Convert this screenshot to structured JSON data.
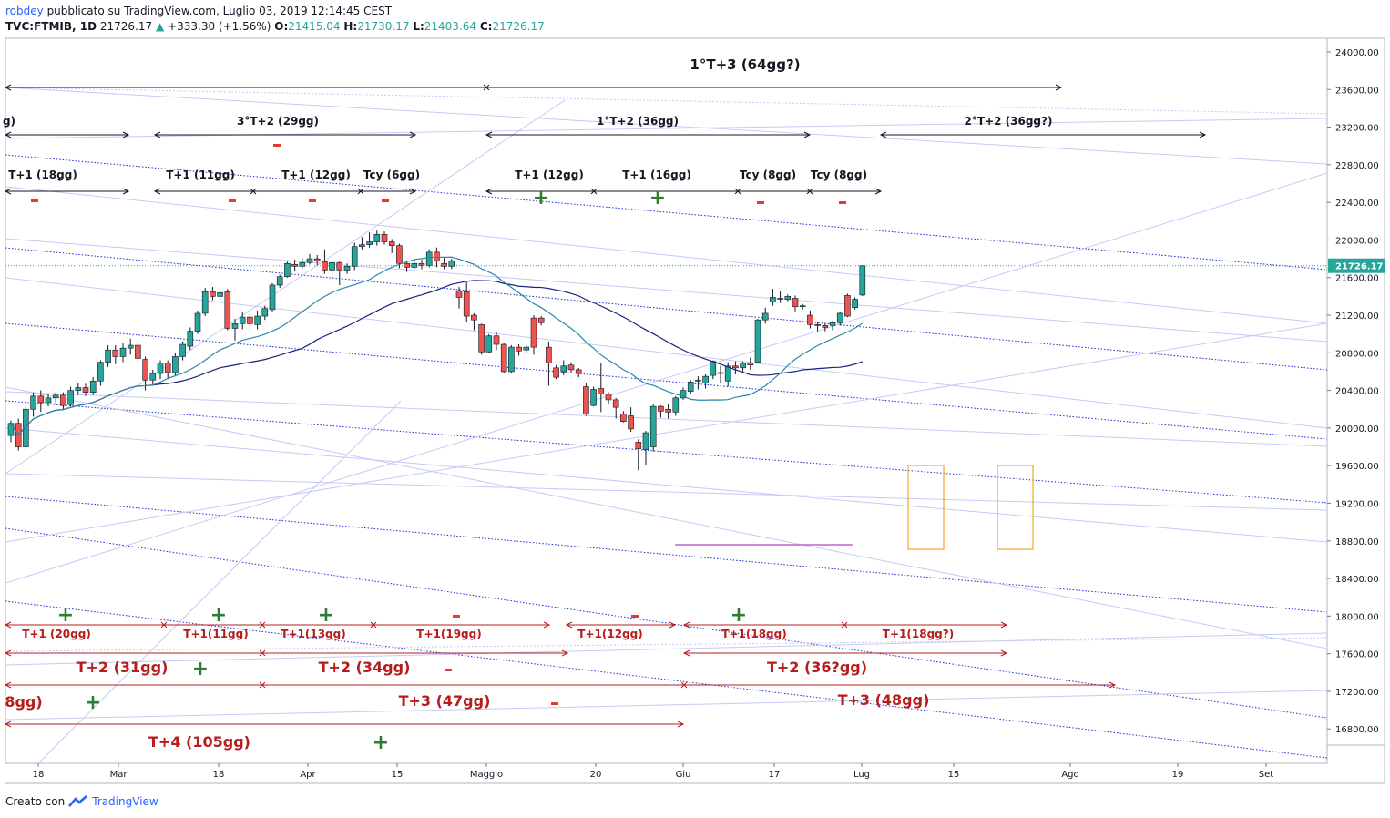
{
  "header": {
    "user": "robdey",
    "published": "pubblicato su TradingView.com, Luglio 03, 2019 12:14:45 CEST",
    "symbol": "TVC:FTMIB, 1D",
    "last": "21726.17",
    "change": "+333.30 (+1.56%)",
    "o_label": "O:",
    "o": "21415.04",
    "h_label": "H:",
    "h": "21730.17",
    "l_label": "L:",
    "l": "21403.64",
    "c_label": "C:",
    "c": "21726.17"
  },
  "footer": {
    "created": "Creato con",
    "brand": "TradingView"
  },
  "colors": {
    "up": "#26a69a",
    "down": "#ef5350",
    "annot_black": "#131722",
    "annot_red": "#b71c1c",
    "plus": "#2e7d32",
    "minus": "#e53935",
    "price_line": "#26a69a",
    "orange": "#f5a623",
    "purple": "#ba68c8"
  },
  "chart_data": {
    "type": "candlestick",
    "ylim": [
      16400,
      24200
    ],
    "y_ticks": [
      "24000.00",
      "23600.00",
      "23200.00",
      "22800.00",
      "22400.00",
      "22000.00",
      "21600.00",
      "21200.00",
      "20800.00",
      "20400.00",
      "20000.00",
      "19600.00",
      "19200.00",
      "18800.00",
      "18400.00",
      "18000.00",
      "17600.00",
      "17200.00",
      "16800.00"
    ],
    "x_ticks": [
      "18",
      "Mar",
      "18",
      "Apr",
      "15",
      "Maggio",
      "20",
      "Giu",
      "17",
      "Lug",
      "15",
      "Ago",
      "19",
      "Set"
    ],
    "last_price_label": "21726.17",
    "candles": [
      [
        19920,
        20050,
        19850,
        20080
      ],
      [
        20050,
        19800,
        19760,
        20100
      ],
      [
        19800,
        20200,
        19780,
        20250
      ],
      [
        20200,
        20340,
        20120,
        20380
      ],
      [
        20340,
        20270,
        20170,
        20400
      ],
      [
        20270,
        20320,
        20230,
        20360
      ],
      [
        20320,
        20350,
        20260,
        20380
      ],
      [
        20350,
        20240,
        20200,
        20380
      ],
      [
        20250,
        20400,
        20230,
        20440
      ],
      [
        20400,
        20430,
        20350,
        20480
      ],
      [
        20430,
        20380,
        20340,
        20470
      ],
      [
        20380,
        20500,
        20350,
        20540
      ],
      [
        20500,
        20700,
        20450,
        20720
      ],
      [
        20700,
        20830,
        20650,
        20880
      ],
      [
        20830,
        20760,
        20680,
        20880
      ],
      [
        20760,
        20850,
        20700,
        20900
      ],
      [
        20850,
        20880,
        20780,
        20950
      ],
      [
        20880,
        20740,
        20700,
        20930
      ],
      [
        20730,
        20510,
        20400,
        20760
      ],
      [
        20510,
        20580,
        20450,
        20620
      ],
      [
        20580,
        20690,
        20520,
        20720
      ],
      [
        20690,
        20590,
        20520,
        20720
      ],
      [
        20590,
        20760,
        20560,
        20800
      ],
      [
        20760,
        20890,
        20720,
        20920
      ],
      [
        20870,
        21030,
        20830,
        21070
      ],
      [
        21030,
        21220,
        21000,
        21250
      ],
      [
        21220,
        21450,
        21190,
        21490
      ],
      [
        21450,
        21400,
        21360,
        21500
      ],
      [
        21400,
        21440,
        21350,
        21480
      ],
      [
        21450,
        21060,
        21040,
        21480
      ],
      [
        21060,
        21110,
        20930,
        21160
      ],
      [
        21110,
        21180,
        21050,
        21240
      ],
      [
        21180,
        21110,
        21040,
        21220
      ],
      [
        21100,
        21190,
        21050,
        21250
      ],
      [
        21190,
        21270,
        21150,
        21300
      ],
      [
        21260,
        21520,
        21240,
        21540
      ],
      [
        21520,
        21610,
        21490,
        21630
      ],
      [
        21610,
        21750,
        21600,
        21770
      ],
      [
        21740,
        21720,
        21670,
        21790
      ],
      [
        21720,
        21760,
        21700,
        21810
      ],
      [
        21760,
        21800,
        21740,
        21850
      ],
      [
        21800,
        21780,
        21730,
        21840
      ],
      [
        21770,
        21680,
        21640,
        21900
      ],
      [
        21680,
        21760,
        21620,
        21790
      ],
      [
        21760,
        21680,
        21520,
        21770
      ],
      [
        21680,
        21720,
        21640,
        21750
      ],
      [
        21720,
        21930,
        21680,
        21970
      ],
      [
        21930,
        21950,
        21900,
        22030
      ],
      [
        21950,
        21980,
        21920,
        22080
      ],
      [
        21980,
        22060,
        21940,
        22100
      ],
      [
        22060,
        21980,
        21950,
        22090
      ],
      [
        21980,
        21940,
        21860,
        22010
      ],
      [
        21940,
        21750,
        21700,
        21960
      ],
      [
        21750,
        21710,
        21660,
        21770
      ],
      [
        21710,
        21750,
        21690,
        21790
      ],
      [
        21750,
        21730,
        21690,
        21790
      ],
      [
        21730,
        21870,
        21710,
        21900
      ],
      [
        21870,
        21780,
        21710,
        21920
      ],
      [
        21750,
        21720,
        21690,
        21810
      ],
      [
        21720,
        21780,
        21690,
        21800
      ],
      [
        21460,
        21390,
        21270,
        21500
      ],
      [
        21450,
        21190,
        21130,
        21550
      ],
      [
        21200,
        21150,
        21040,
        21220
      ],
      [
        21100,
        20810,
        20780,
        21110
      ],
      [
        20810,
        20980,
        20800,
        21000
      ],
      [
        20980,
        20890,
        20830,
        21020
      ],
      [
        20890,
        20600,
        20580,
        20900
      ],
      [
        20600,
        20860,
        20590,
        20880
      ],
      [
        20860,
        20820,
        20770,
        20890
      ],
      [
        20830,
        20860,
        20800,
        20880
      ],
      [
        21170,
        20860,
        20780,
        21200
      ],
      [
        21170,
        21120,
        21090,
        21190
      ],
      [
        20860,
        20690,
        20450,
        20920
      ],
      [
        20640,
        20540,
        20520,
        20670
      ],
      [
        20600,
        20660,
        20560,
        20720
      ],
      [
        20670,
        20620,
        20580,
        20700
      ],
      [
        20620,
        20580,
        20540,
        20640
      ],
      [
        20440,
        20150,
        20130,
        20480
      ],
      [
        20240,
        20410,
        20230,
        20440
      ],
      [
        20420,
        20360,
        20170,
        20690
      ],
      [
        20360,
        20300,
        20260,
        20380
      ],
      [
        20300,
        20220,
        20100,
        20320
      ],
      [
        20150,
        20070,
        20060,
        20180
      ],
      [
        20130,
        19990,
        19960,
        20220
      ],
      [
        19850,
        19780,
        19550,
        19880
      ],
      [
        19770,
        19950,
        19600,
        19970
      ],
      [
        19800,
        20230,
        19750,
        20250
      ],
      [
        20230,
        20180,
        20110,
        20240
      ],
      [
        20200,
        20170,
        20100,
        20260
      ],
      [
        20170,
        20320,
        20130,
        20340
      ],
      [
        20320,
        20400,
        20300,
        20430
      ],
      [
        20390,
        20490,
        20360,
        20510
      ],
      [
        20500,
        20510,
        20410,
        20550
      ],
      [
        20480,
        20550,
        20420,
        20570
      ],
      [
        20560,
        20710,
        20520,
        20720
      ],
      [
        20590,
        20590,
        20480,
        20660
      ],
      [
        20500,
        20660,
        20440,
        20700
      ],
      [
        20660,
        20640,
        20570,
        20710
      ],
      [
        20640,
        20690,
        20600,
        20710
      ],
      [
        20690,
        20670,
        20620,
        20750
      ],
      [
        20700,
        21150,
        20690,
        21160
      ],
      [
        21150,
        21220,
        21110,
        21280
      ],
      [
        21340,
        21390,
        21300,
        21480
      ],
      [
        21380,
        21370,
        21330,
        21460
      ],
      [
        21370,
        21400,
        21350,
        21420
      ],
      [
        21380,
        21290,
        21240,
        21410
      ],
      [
        21300,
        21300,
        21260,
        21320
      ],
      [
        21200,
        21100,
        21060,
        21250
      ],
      [
        21100,
        21090,
        21030,
        21130
      ],
      [
        21090,
        21070,
        21030,
        21110
      ],
      [
        21090,
        21120,
        21040,
        21140
      ],
      [
        21120,
        21220,
        21090,
        21240
      ],
      [
        21410,
        21190,
        21180,
        21430
      ],
      [
        21280,
        21370,
        21260,
        21390
      ],
      [
        21415,
        21726,
        21403,
        21730
      ]
    ],
    "moving_averages": [
      "MA long (navy)",
      "MA medium (teal)"
    ],
    "annotations": {
      "black_labels": [
        "1°T+3 (64gg?)",
        "3°T+2 (29gg)",
        "1°T+2 (36gg)",
        "2°T+2 (36gg?)",
        "T+1 (18gg)",
        "T+1 (11gg)",
        "T+1 (12gg)",
        "Tcy (6gg)",
        "T+1 (12gg)",
        "T+1 (16gg)",
        "Tcy (8gg)",
        "Tcy (8gg)",
        "g)"
      ],
      "red_small_labels": [
        "T+1 (20gg)",
        "T+1(11gg)",
        "T+1(13gg)",
        "T+1(19gg)",
        "T+1(12gg)",
        "T+1(18gg)",
        "T+1(18gg?)"
      ],
      "red_large_labels": [
        "T+2 (31gg)",
        "T+2 (34gg)",
        "T+2 (36?gg)",
        "8gg)",
        "T+3 (47gg)",
        "T+3 (48gg)",
        "T+4 (105gg)"
      ],
      "plus_sign": "+",
      "minus_sign": "-"
    }
  }
}
